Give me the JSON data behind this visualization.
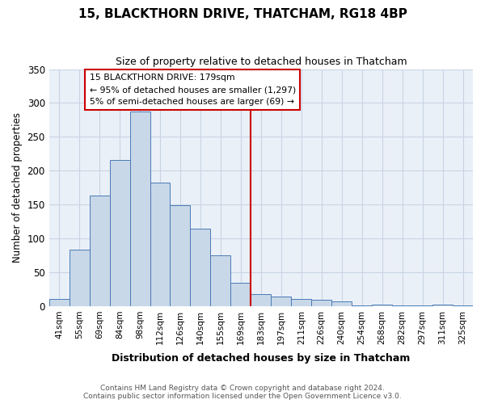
{
  "title": "15, BLACKTHORN DRIVE, THATCHAM, RG18 4BP",
  "subtitle": "Size of property relative to detached houses in Thatcham",
  "xlabel": "Distribution of detached houses by size in Thatcham",
  "ylabel": "Number of detached properties",
  "bar_labels": [
    "41sqm",
    "55sqm",
    "69sqm",
    "84sqm",
    "98sqm",
    "112sqm",
    "126sqm",
    "140sqm",
    "155sqm",
    "169sqm",
    "183sqm",
    "197sqm",
    "211sqm",
    "226sqm",
    "240sqm",
    "254sqm",
    "268sqm",
    "282sqm",
    "297sqm",
    "311sqm",
    "325sqm"
  ],
  "bar_values": [
    11,
    83,
    163,
    216,
    287,
    182,
    149,
    114,
    75,
    34,
    18,
    14,
    11,
    9,
    7,
    1,
    2,
    1,
    1,
    2,
    1
  ],
  "bar_color": "#c8d8e8",
  "bar_edge_color": "#4a7ab5",
  "vline_pos": 9.5,
  "vline_color": "#cc0000",
  "annotation_line1": "15 BLACKTHORN DRIVE: 179sqm",
  "annotation_line2": "← 95% of detached houses are smaller (1,297)",
  "annotation_line3": "5% of semi-detached houses are larger (69) →",
  "annotation_box_edge_color": "#cc0000",
  "ylim": [
    0,
    350
  ],
  "yticks": [
    0,
    50,
    100,
    150,
    200,
    250,
    300,
    350
  ],
  "footer": "Contains HM Land Registry data © Crown copyright and database right 2024.\nContains public sector information licensed under the Open Government Licence v3.0.",
  "bg_color": "#ffffff",
  "ax_bg_color": "#eaf0f8",
  "grid_color": "#c8d4e4"
}
